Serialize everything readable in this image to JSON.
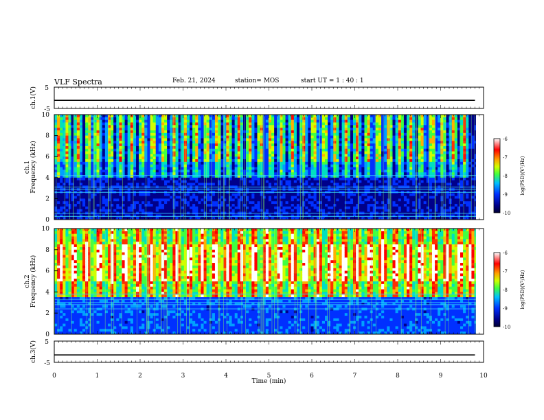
{
  "header": {
    "title": "VLF Spectra",
    "date": "Feb. 21, 2024",
    "station": "station= MOS",
    "start": "start UT = 1 : 40 : 1"
  },
  "colors": {
    "spec_stops": [
      "#000033",
      "#00008a",
      "#0030ff",
      "#00a0ff",
      "#00e0c0",
      "#40ff40",
      "#d0ff00",
      "#ffb000",
      "#ff3000",
      "#ff0000",
      "#ffffff"
    ],
    "trace": "#000000",
    "tone": "#8cff60"
  },
  "chart_data": [
    {
      "type": "line",
      "ylabel": "ch.1(V)",
      "yticks": [
        "5",
        "-5"
      ],
      "ylim": [
        -5,
        5
      ],
      "xlim": [
        0,
        10
      ],
      "series": [
        {
          "values_x": [
            0,
            9.8
          ],
          "values_y": [
            -1.2,
            -1.2
          ]
        }
      ]
    },
    {
      "type": "heatmap",
      "ylabel": "ch.1\nFrequency (kHz)",
      "yticks": [
        "0",
        "2",
        "4",
        "6",
        "8",
        "10"
      ],
      "ylim": [
        0,
        10
      ],
      "xlim": [
        0,
        9.85
      ],
      "colorbar": {
        "label": "log(PSD)(V²/Hz)",
        "ticks": [
          "-6",
          "-7",
          "-8",
          "-9",
          "-10"
        ],
        "range": [
          -10,
          -6
        ]
      },
      "bands_khz": [
        0.3,
        0.6,
        2.6,
        2.9,
        3.1,
        4.2
      ],
      "bursts_min": [
        0.1,
        0.3,
        0.55,
        0.8,
        1.0,
        1.3,
        1.55,
        1.8,
        2.05,
        2.3,
        2.55,
        2.8,
        3.05,
        3.3,
        3.55,
        3.8,
        4.05,
        4.3,
        4.55,
        4.8,
        5.05,
        5.3,
        5.55,
        5.8,
        6.05,
        6.3,
        6.55,
        6.8,
        7.05,
        7.3,
        7.55,
        7.8,
        8.05,
        8.3,
        8.55,
        8.8,
        9.05,
        9.3,
        9.55
      ]
    },
    {
      "type": "heatmap",
      "ylabel": "ch.2\nFrequency (kHz)",
      "yticks": [
        "0",
        "2",
        "4",
        "6",
        "8",
        "10"
      ],
      "ylim": [
        0,
        10
      ],
      "xlim": [
        0,
        9.85
      ],
      "colorbar": {
        "label": "log(PSD)(V²/Hz)",
        "ticks": [
          "-6",
          "-7",
          "-8",
          "-9",
          "-10"
        ],
        "range": [
          -10,
          -6
        ]
      },
      "bands_khz": [
        2.4,
        2.8,
        3.0,
        3.3,
        3.8
      ],
      "bursts_min": [
        0.15,
        0.45,
        0.75,
        1.05,
        1.35,
        1.65,
        1.95,
        2.25,
        2.55,
        2.85,
        3.15,
        3.45,
        3.75,
        4.05,
        4.35,
        4.65,
        4.95,
        5.25,
        5.55,
        5.85,
        6.15,
        6.45,
        6.75,
        7.05,
        7.35,
        7.65,
        7.95,
        8.25,
        8.55,
        8.85,
        9.15,
        9.45,
        9.7
      ]
    },
    {
      "type": "line",
      "ylabel": "ch.3(V)",
      "yticks": [
        "5",
        "-5"
      ],
      "ylim": [
        -5,
        5
      ],
      "xlim": [
        0,
        10
      ],
      "xlabel": "Time (min)",
      "xticks": [
        "0",
        "1",
        "2",
        "3",
        "4",
        "5",
        "6",
        "7",
        "8",
        "9",
        "10"
      ],
      "series": [
        {
          "values_x": [
            0,
            9.8
          ],
          "values_y": [
            -1.5,
            -1.5
          ]
        }
      ]
    }
  ]
}
